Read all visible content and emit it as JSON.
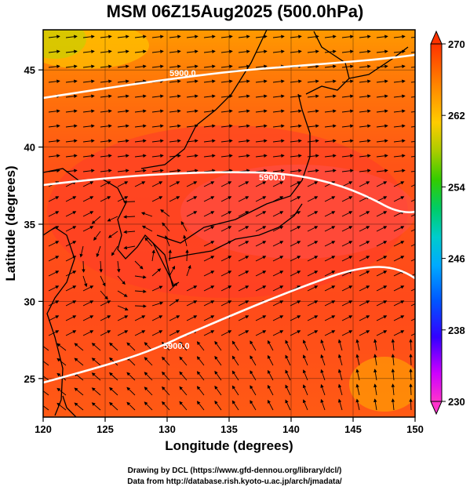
{
  "title": "MSM 06Z15Aug2025 (500.0hPa)",
  "x_axis": {
    "label": "Longitude (degrees)",
    "range": [
      120,
      150
    ],
    "ticks": [
      "120",
      "125",
      "130",
      "135",
      "140",
      "145",
      "150"
    ]
  },
  "y_axis": {
    "label": "Latitude  (degrees)",
    "range": [
      22.5,
      47.6
    ],
    "ticks": [
      "25",
      "30",
      "35",
      "40",
      "45"
    ]
  },
  "colorbar": {
    "range": [
      230,
      270
    ],
    "ticks": [
      "230",
      "238",
      "246",
      "254",
      "262",
      "270"
    ],
    "colors": [
      "#ff33cc",
      "#cc00ff",
      "#0000ff",
      "#0099ff",
      "#00cccc",
      "#00cc66",
      "#33cc00",
      "#99cc00",
      "#ffcc00",
      "#ff8800",
      "#ff3300"
    ]
  },
  "contours": [
    {
      "label": "5900.0"
    },
    {
      "label": "5900.0"
    },
    {
      "label": "5900.0"
    }
  ],
  "credits": {
    "line1": "Drawing by DCL (https://www.gfd-dennou.org/library/dcl/)",
    "line2": "Data from http://database.rish.kyoto-u.ac.jp/arch/jmadata/"
  },
  "colors": {
    "field_hot": "#ff3a1e",
    "field_mid": "#ff6a10",
    "field_cool": "#ffaa00",
    "contour": "#ffffff",
    "vector": "#000000"
  }
}
